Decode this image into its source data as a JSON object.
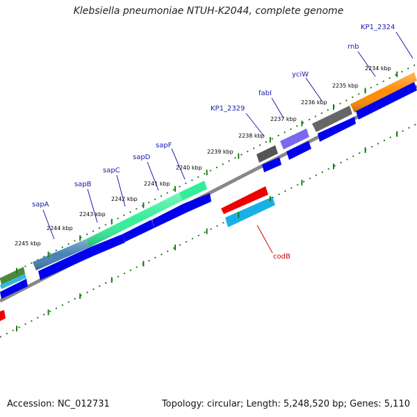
{
  "title": "Klebsiella pneumoniae NTUH-K2044, complete genome",
  "footer": {
    "accession": "Accession: NC_012731",
    "summary": "Topology: circular; Length: 5,248,520 bp; Genes: 5,110"
  },
  "colors": {
    "backbone": "#888888",
    "tick": "#1a7a1a",
    "cds": "#0000ee",
    "label_forward": "#1a1aa6",
    "label_reverse": "#cc0000"
  },
  "ticks": [
    "2234 kbp",
    "2235 kbp",
    "2236 kbp",
    "2237 kbp",
    "2238 kbp",
    "2239 kbp",
    "2240 kbp",
    "2241 kbp",
    "2242 kbp",
    "2243 kbp",
    "2244 kbp",
    "2245 kbp"
  ],
  "genes": [
    {
      "name": "KP1_2324",
      "strand": "forward",
      "color": "#ff8c00"
    },
    {
      "name": "rnb",
      "strand": "forward",
      "color": "#ff8c00"
    },
    {
      "name": "yciW",
      "strand": "forward",
      "color": "#666666"
    },
    {
      "name": "fabI",
      "strand": "forward",
      "color": "#7b68ee"
    },
    {
      "name": "KP1_2329",
      "strand": "forward",
      "color": "#666666"
    },
    {
      "name": "sapF",
      "strand": "forward",
      "color": "#33ee99"
    },
    {
      "name": "sapD",
      "strand": "forward",
      "color": "#33ee99"
    },
    {
      "name": "sapC",
      "strand": "forward",
      "color": "#33ee99"
    },
    {
      "name": "sapB",
      "strand": "forward",
      "color": "#33ee99"
    },
    {
      "name": "sapA",
      "strand": "forward",
      "color": "#4682b4"
    },
    {
      "name": "codB",
      "strand": "reverse",
      "color": "#ee0000"
    }
  ]
}
